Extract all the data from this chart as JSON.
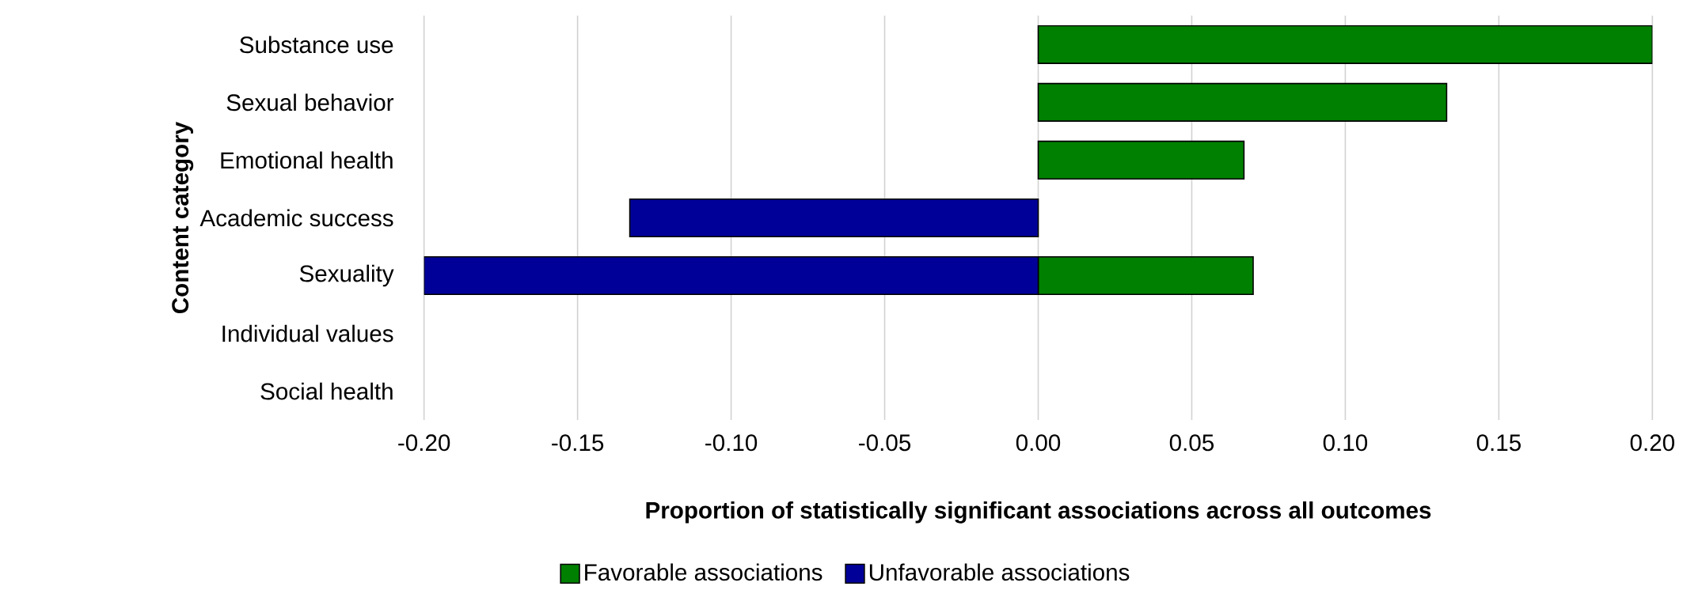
{
  "chart_data": {
    "type": "bar",
    "orientation": "horizontal",
    "categories": [
      "Substance use",
      "Sexual behavior",
      "Emotional health",
      "Academic success",
      "Sexuality",
      "Individual values",
      "Social health"
    ],
    "series": [
      {
        "name": "Favorable associations",
        "color": "#008000",
        "values": [
          0.2,
          0.133,
          0.067,
          null,
          0.07,
          null,
          null
        ]
      },
      {
        "name": "Unfavorable associations",
        "color": "#000099",
        "values": [
          null,
          null,
          null,
          -0.133,
          -0.2,
          null,
          null
        ]
      }
    ],
    "xlabel": "Proportion of statistically significant associations across all outcomes",
    "ylabel": "Content category",
    "xlim": [
      -0.2,
      0.2
    ],
    "xticks": [
      {
        "value": -0.2,
        "label": "-0.20"
      },
      {
        "value": -0.15,
        "label": "-0.15"
      },
      {
        "value": -0.1,
        "label": "-0.10"
      },
      {
        "value": -0.05,
        "label": "-0.05"
      },
      {
        "value": 0,
        "label": "0.00"
      },
      {
        "value": 0.05,
        "label": "0.05"
      },
      {
        "value": 0.1,
        "label": "0.10"
      },
      {
        "value": 0.15,
        "label": "0.15"
      },
      {
        "value": 0.2,
        "label": "0.20"
      }
    ],
    "grid": "x",
    "legend": "bottom"
  }
}
